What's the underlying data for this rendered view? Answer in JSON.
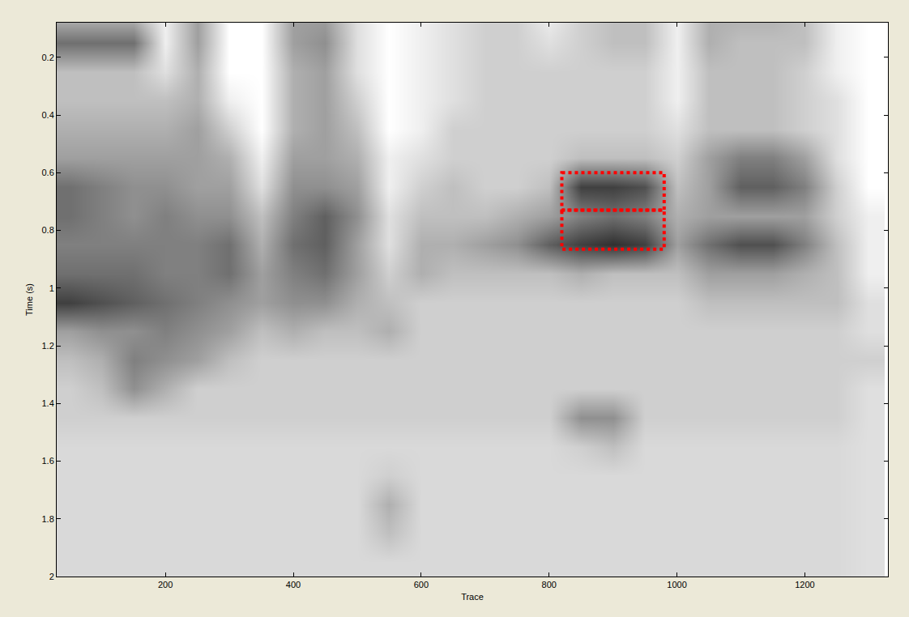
{
  "chart_data": {
    "type": "heatmap",
    "xlabel": "Trace",
    "ylabel": "Time (s)",
    "x": [
      50,
      100,
      150,
      200,
      250,
      300,
      350,
      400,
      450,
      500,
      550,
      600,
      650,
      700,
      750,
      800,
      850,
      900,
      950,
      1000,
      1050,
      1100,
      1150,
      1200,
      1250,
      1300
    ],
    "y": [
      0.05,
      0.15,
      0.25,
      0.35,
      0.45,
      0.55,
      0.65,
      0.75,
      0.85,
      0.95,
      1.05,
      1.15,
      1.25,
      1.35,
      1.45,
      1.55,
      1.65,
      1.75,
      1.85,
      1.95
    ],
    "z": [
      [
        0.2,
        0.2,
        0.2,
        0.05,
        0.3,
        0,
        0,
        0.3,
        0.3,
        0.1,
        0,
        0.05,
        0.1,
        0.15,
        0.15,
        0.05,
        0.15,
        0.2,
        0.2,
        0.05,
        0.25,
        0.25,
        0.25,
        0.2,
        0.05,
        0
      ],
      [
        0.45,
        0.45,
        0.45,
        0.05,
        0.3,
        0,
        0,
        0.3,
        0.35,
        0.1,
        0,
        0.05,
        0.1,
        0.15,
        0.15,
        0.1,
        0.15,
        0.2,
        0.2,
        0.05,
        0.25,
        0.2,
        0.2,
        0.2,
        0.05,
        0
      ],
      [
        0.2,
        0.2,
        0.2,
        0.1,
        0.25,
        0,
        0,
        0.25,
        0.3,
        0.1,
        0,
        0.05,
        0.1,
        0.15,
        0.15,
        0.15,
        0.15,
        0.15,
        0.15,
        0.05,
        0.2,
        0.2,
        0.2,
        0.15,
        0.05,
        0
      ],
      [
        0.2,
        0.2,
        0.2,
        0.2,
        0.25,
        0.05,
        0,
        0.25,
        0.3,
        0.15,
        0,
        0.05,
        0.1,
        0.15,
        0.15,
        0.15,
        0.15,
        0.15,
        0.15,
        0.05,
        0.2,
        0.2,
        0.2,
        0.15,
        0.1,
        0
      ],
      [
        0.25,
        0.25,
        0.25,
        0.25,
        0.3,
        0.15,
        0,
        0.25,
        0.3,
        0.2,
        0,
        0.05,
        0.15,
        0.15,
        0.15,
        0.15,
        0.15,
        0.15,
        0.15,
        0.1,
        0.2,
        0.2,
        0.2,
        0.15,
        0.1,
        0
      ],
      [
        0.3,
        0.3,
        0.3,
        0.3,
        0.3,
        0.25,
        0.05,
        0.3,
        0.3,
        0.25,
        0.05,
        0.1,
        0.15,
        0.15,
        0.15,
        0.15,
        0.2,
        0.2,
        0.2,
        0.15,
        0.3,
        0.4,
        0.4,
        0.3,
        0.1,
        0
      ],
      [
        0.45,
        0.4,
        0.35,
        0.35,
        0.3,
        0.3,
        0.1,
        0.35,
        0.35,
        0.3,
        0.05,
        0.15,
        0.2,
        0.15,
        0.15,
        0.2,
        0.6,
        0.6,
        0.55,
        0.2,
        0.3,
        0.5,
        0.5,
        0.4,
        0.15,
        0
      ],
      [
        0.45,
        0.4,
        0.35,
        0.4,
        0.35,
        0.35,
        0.2,
        0.4,
        0.5,
        0.35,
        0.1,
        0.2,
        0.2,
        0.2,
        0.25,
        0.3,
        0.4,
        0.45,
        0.4,
        0.25,
        0.3,
        0.3,
        0.3,
        0.3,
        0.15,
        0.05
      ],
      [
        0.4,
        0.4,
        0.4,
        0.4,
        0.4,
        0.45,
        0.25,
        0.45,
        0.5,
        0.3,
        0.1,
        0.25,
        0.25,
        0.3,
        0.35,
        0.5,
        0.6,
        0.65,
        0.6,
        0.3,
        0.45,
        0.55,
        0.55,
        0.4,
        0.2,
        0.05
      ],
      [
        0.45,
        0.45,
        0.45,
        0.4,
        0.4,
        0.45,
        0.3,
        0.4,
        0.45,
        0.3,
        0.15,
        0.25,
        0.2,
        0.2,
        0.2,
        0.2,
        0.25,
        0.2,
        0.2,
        0.2,
        0.3,
        0.3,
        0.3,
        0.25,
        0.2,
        0.05
      ],
      [
        0.6,
        0.55,
        0.5,
        0.45,
        0.4,
        0.35,
        0.3,
        0.35,
        0.35,
        0.25,
        0.2,
        0.15,
        0.15,
        0.15,
        0.15,
        0.15,
        0.15,
        0.15,
        0.15,
        0.15,
        0.2,
        0.2,
        0.2,
        0.2,
        0.2,
        0.1
      ],
      [
        0.3,
        0.35,
        0.35,
        0.4,
        0.35,
        0.3,
        0.2,
        0.25,
        0.2,
        0.2,
        0.25,
        0.15,
        0.15,
        0.15,
        0.15,
        0.15,
        0.15,
        0.15,
        0.15,
        0.15,
        0.15,
        0.15,
        0.15,
        0.15,
        0.15,
        0.1
      ],
      [
        0.2,
        0.25,
        0.4,
        0.35,
        0.3,
        0.2,
        0.15,
        0.15,
        0.15,
        0.15,
        0.15,
        0.15,
        0.15,
        0.15,
        0.15,
        0.15,
        0.15,
        0.15,
        0.15,
        0.15,
        0.15,
        0.15,
        0.15,
        0.15,
        0.15,
        0.15
      ],
      [
        0.15,
        0.2,
        0.35,
        0.25,
        0.15,
        0.15,
        0.15,
        0.15,
        0.15,
        0.15,
        0.15,
        0.15,
        0.15,
        0.15,
        0.15,
        0.15,
        0.15,
        0.15,
        0.15,
        0.15,
        0.15,
        0.15,
        0.15,
        0.15,
        0.15,
        0.1
      ],
      [
        0.15,
        0.15,
        0.15,
        0.15,
        0.15,
        0.15,
        0.15,
        0.15,
        0.15,
        0.15,
        0.15,
        0.15,
        0.15,
        0.15,
        0.15,
        0.15,
        0.35,
        0.35,
        0.15,
        0.15,
        0.15,
        0.15,
        0.15,
        0.15,
        0.15,
        0.1
      ],
      [
        0.12,
        0.12,
        0.12,
        0.12,
        0.12,
        0.12,
        0.12,
        0.12,
        0.12,
        0.12,
        0.12,
        0.12,
        0.12,
        0.12,
        0.12,
        0.12,
        0.15,
        0.2,
        0.12,
        0.12,
        0.12,
        0.12,
        0.12,
        0.12,
        0.12,
        0.1
      ],
      [
        0.12,
        0.12,
        0.12,
        0.12,
        0.12,
        0.12,
        0.12,
        0.12,
        0.12,
        0.12,
        0.15,
        0.12,
        0.12,
        0.12,
        0.12,
        0.12,
        0.12,
        0.12,
        0.12,
        0.12,
        0.12,
        0.12,
        0.12,
        0.12,
        0.12,
        0.1
      ],
      [
        0.12,
        0.12,
        0.12,
        0.12,
        0.12,
        0.12,
        0.12,
        0.12,
        0.12,
        0.12,
        0.25,
        0.12,
        0.12,
        0.12,
        0.12,
        0.12,
        0.12,
        0.12,
        0.12,
        0.12,
        0.12,
        0.12,
        0.12,
        0.12,
        0.12,
        0.1
      ],
      [
        0.12,
        0.12,
        0.12,
        0.12,
        0.12,
        0.12,
        0.12,
        0.12,
        0.12,
        0.12,
        0.2,
        0.12,
        0.12,
        0.12,
        0.12,
        0.12,
        0.12,
        0.12,
        0.12,
        0.12,
        0.12,
        0.12,
        0.12,
        0.12,
        0.12,
        0.1
      ],
      [
        0.12,
        0.12,
        0.12,
        0.12,
        0.12,
        0.12,
        0.12,
        0.12,
        0.12,
        0.12,
        0.12,
        0.12,
        0.12,
        0.12,
        0.12,
        0.12,
        0.12,
        0.12,
        0.12,
        0.12,
        0.12,
        0.12,
        0.12,
        0.12,
        0.12,
        0.1
      ]
    ],
    "zlim": [
      0,
      0.8
    ],
    "xlim": [
      30,
      1330
    ],
    "xticks": [
      200,
      400,
      600,
      800,
      1000,
      1200
    ],
    "ylim": [
      0.08,
      2
    ],
    "yticks": [
      0.2,
      0.4,
      0.6,
      0.8,
      1,
      1.2,
      1.4,
      1.6,
      1.8,
      2
    ],
    "grid": false,
    "boxes": [
      {
        "x0": 820,
        "x1": 980,
        "y0": 0.6,
        "y1": 0.73,
        "color": "#ff0000",
        "line_style": "dot"
      },
      {
        "x0": 820,
        "x1": 980,
        "y0": 0.73,
        "y1": 0.865,
        "color": "#ff0000",
        "line_style": "dot"
      }
    ]
  }
}
